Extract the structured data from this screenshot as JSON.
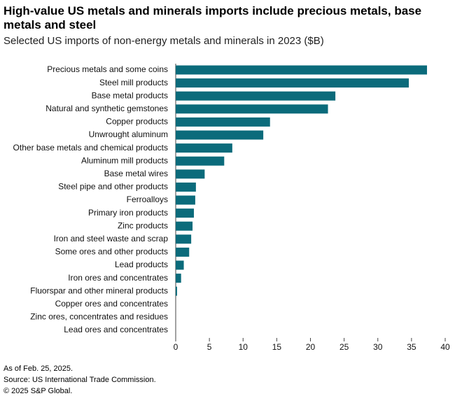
{
  "chart_data": {
    "type": "barh",
    "title": "High-value US metals and minerals imports include precious metals, base metals and steel",
    "subtitle": "Selected US imports of non-energy metals and minerals in 2023 ($B)",
    "categories": [
      "Precious metals and some coins",
      "Steel mill products",
      "Base metal products",
      "Natural and synthetic gemstones",
      "Copper products",
      "Unwrought aluminum",
      "Other base metals and chemical products",
      "Aluminum mill products",
      "Base metal wires",
      "Steel pipe and other products",
      "Ferroalloys",
      "Primary iron products",
      "Zinc products",
      "Iron and steel waste and scrap",
      "Some ores and other products",
      "Lead products",
      "Iron ores and concentrates",
      "Fluorspar and other mineral products",
      "Copper ores and concentrates",
      "Zinc ores, concentrates and residues",
      "Lead ores and concentrates"
    ],
    "values": [
      37.3,
      34.6,
      23.7,
      22.6,
      14.0,
      13.0,
      8.4,
      7.2,
      4.3,
      3.0,
      2.9,
      2.7,
      2.5,
      2.3,
      2.0,
      1.2,
      0.8,
      0.2,
      0,
      0,
      0
    ],
    "color": "#0b6b7b",
    "xlim": [
      0,
      40
    ],
    "xticks": [
      0,
      5,
      10,
      15,
      20,
      25,
      30,
      35,
      40
    ],
    "notes": [
      "As of Feb. 25, 2025.",
      "Source: US International Trade Commission.",
      "© 2025 S&P Global."
    ]
  }
}
